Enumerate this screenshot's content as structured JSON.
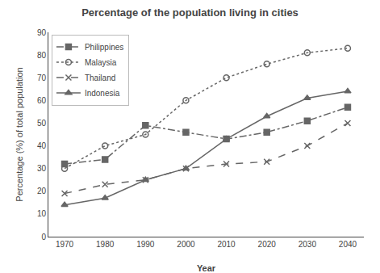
{
  "chart_data": {
    "type": "line",
    "title": "Percentage of the population living in cities",
    "x_label": "Year",
    "y_label": "Percentage (%) of total population",
    "x": [
      1970,
      1980,
      1990,
      2000,
      2010,
      2020,
      2030,
      2040
    ],
    "series": [
      {
        "name": "Philippines",
        "color": "#666666",
        "marker": "square",
        "line_style": "dashdot",
        "values": [
          32,
          34,
          49,
          46,
          43,
          46,
          51,
          57
        ]
      },
      {
        "name": "Malaysia",
        "color": "#666666",
        "marker": "circle-open",
        "line_style": "dot",
        "values": [
          30,
          40,
          45,
          60,
          70,
          76,
          81,
          83
        ]
      },
      {
        "name": "Thailand",
        "color": "#666666",
        "marker": "x",
        "line_style": "dash",
        "values": [
          19,
          23,
          25,
          30,
          32,
          33,
          40,
          50
        ]
      },
      {
        "name": "Indonesia",
        "color": "#666666",
        "marker": "triangle-up",
        "line_style": "solid",
        "values": [
          14,
          17,
          25,
          30,
          43,
          53,
          61,
          64
        ]
      }
    ],
    "xlim": [
      1966,
      2044
    ],
    "xticks": [
      1970,
      1980,
      1990,
      2000,
      2010,
      2020,
      2030,
      2040
    ],
    "ylim": [
      0,
      90
    ],
    "yticks": [
      0,
      10,
      20,
      30,
      40,
      50,
      60,
      70,
      80,
      90
    ],
    "grid": false,
    "legend": "upper left"
  }
}
